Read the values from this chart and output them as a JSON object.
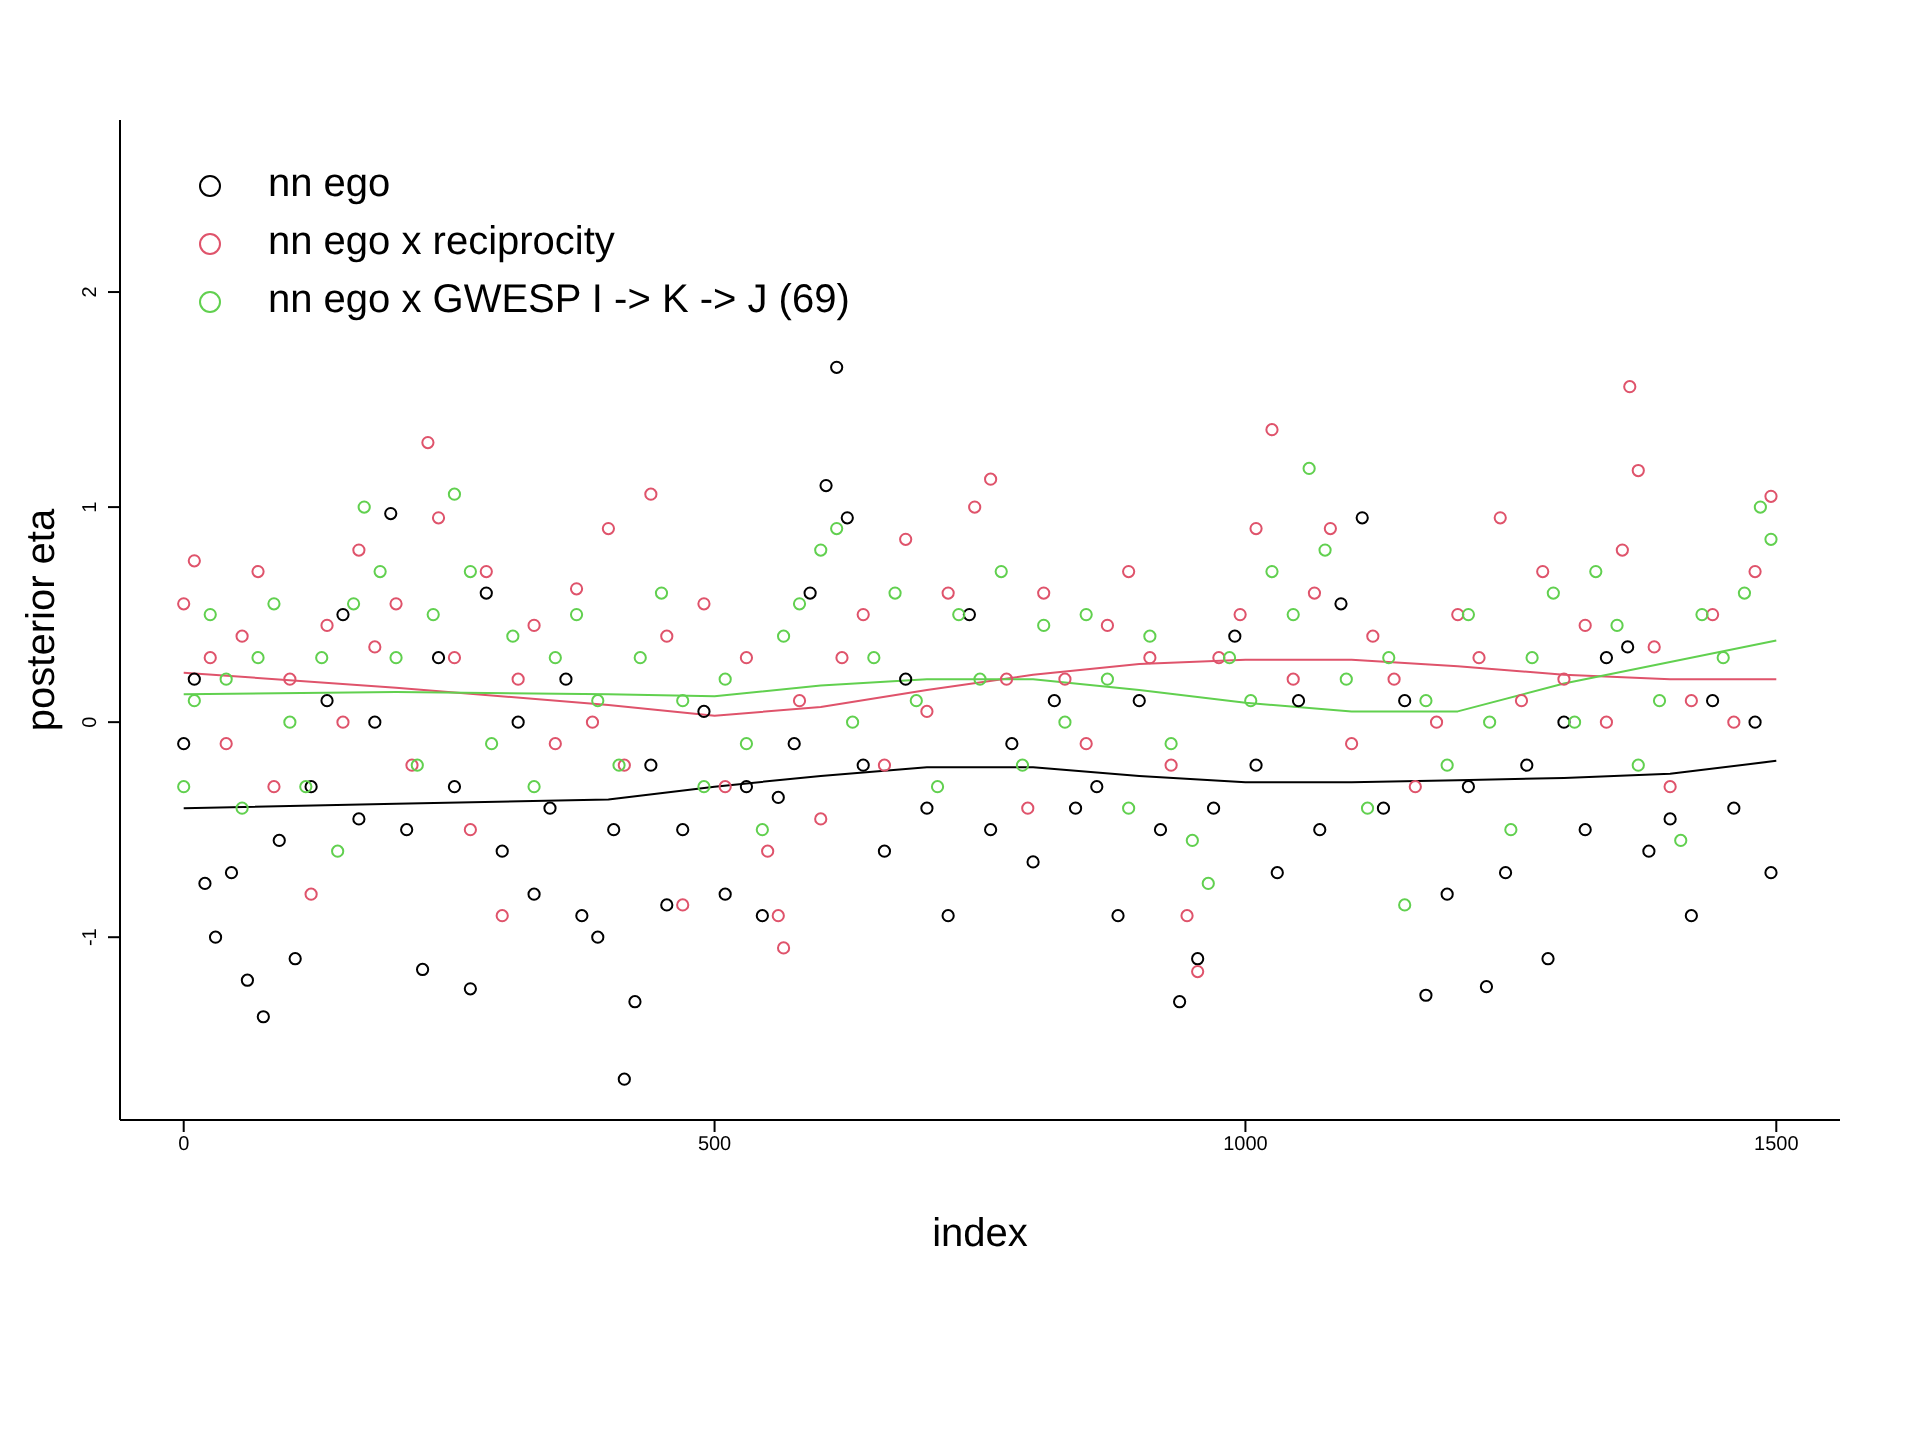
{
  "chart_data": {
    "type": "scatter",
    "xlabel": "index",
    "ylabel": "posterior eta",
    "xlim": [
      -60,
      1560
    ],
    "ylim": [
      -1.85,
      2.8
    ],
    "xticks": [
      0,
      500,
      1000,
      1500
    ],
    "yticks": [
      -1,
      0,
      1,
      2
    ],
    "grid": false,
    "legend": "top left",
    "marker": "circle",
    "series": [
      {
        "name": "nn ego",
        "color": "#000000",
        "x": [
          0,
          10,
          20,
          30,
          45,
          60,
          75,
          90,
          105,
          120,
          135,
          150,
          165,
          180,
          195,
          210,
          225,
          240,
          255,
          270,
          285,
          300,
          315,
          330,
          345,
          360,
          375,
          390,
          405,
          415,
          425,
          440,
          455,
          470,
          490,
          510,
          530,
          545,
          560,
          575,
          590,
          605,
          615,
          625,
          640,
          660,
          680,
          700,
          720,
          740,
          760,
          780,
          800,
          820,
          840,
          860,
          880,
          900,
          920,
          938,
          955,
          970,
          990,
          1010,
          1030,
          1050,
          1070,
          1090,
          1110,
          1130,
          1150,
          1170,
          1190,
          1210,
          1227,
          1245,
          1265,
          1285,
          1300,
          1320,
          1340,
          1360,
          1380,
          1400,
          1420,
          1440,
          1460,
          1480,
          1495
        ],
        "values": [
          -0.1,
          0.2,
          -0.75,
          -1.0,
          -0.7,
          -1.2,
          -1.37,
          -0.55,
          -1.1,
          -0.3,
          0.1,
          0.5,
          -0.45,
          0.0,
          0.97,
          -0.5,
          -1.15,
          0.3,
          -0.3,
          -1.24,
          0.6,
          -0.6,
          0.0,
          -0.8,
          -0.4,
          0.2,
          -0.9,
          -1.0,
          -0.5,
          -1.66,
          -1.3,
          -0.2,
          -0.85,
          -0.5,
          0.05,
          -0.8,
          -0.3,
          -0.9,
          -0.35,
          -0.1,
          0.6,
          1.1,
          1.65,
          0.95,
          -0.2,
          -0.6,
          0.2,
          -0.4,
          -0.9,
          0.5,
          -0.5,
          -0.1,
          -0.65,
          0.1,
          -0.4,
          -0.3,
          -0.9,
          0.1,
          -0.5,
          -1.3,
          -1.1,
          -0.4,
          0.4,
          -0.2,
          -0.7,
          0.1,
          -0.5,
          0.55,
          0.95,
          -0.4,
          0.1,
          -1.27,
          -0.8,
          -0.3,
          -1.23,
          -0.7,
          -0.2,
          -1.1,
          0.0,
          -0.5,
          0.3,
          0.35,
          -0.6,
          -0.45,
          -0.9,
          0.1,
          -0.4,
          0.0,
          -0.7
        ]
      },
      {
        "name": "nn ego x reciprocity",
        "color": "#df536b",
        "x": [
          0,
          10,
          25,
          40,
          55,
          70,
          85,
          100,
          120,
          135,
          150,
          165,
          180,
          200,
          215,
          230,
          240,
          255,
          270,
          285,
          300,
          315,
          330,
          350,
          370,
          385,
          400,
          415,
          440,
          455,
          470,
          490,
          510,
          530,
          550,
          560,
          565,
          580,
          600,
          620,
          640,
          660,
          680,
          700,
          720,
          745,
          760,
          775,
          795,
          810,
          830,
          850,
          870,
          890,
          910,
          930,
          945,
          955,
          975,
          995,
          1010,
          1025,
          1045,
          1065,
          1080,
          1100,
          1120,
          1140,
          1160,
          1180,
          1200,
          1220,
          1240,
          1260,
          1280,
          1300,
          1320,
          1340,
          1355,
          1362,
          1370,
          1385,
          1400,
          1420,
          1440,
          1460,
          1480,
          1495
        ],
        "values": [
          0.55,
          0.75,
          0.3,
          -0.1,
          0.4,
          0.7,
          -0.3,
          0.2,
          -0.8,
          0.45,
          0.0,
          0.8,
          0.35,
          0.55,
          -0.2,
          1.3,
          0.95,
          0.3,
          -0.5,
          0.7,
          -0.9,
          0.2,
          0.45,
          -0.1,
          0.62,
          0.0,
          0.9,
          -0.2,
          1.06,
          0.4,
          -0.85,
          0.55,
          -0.3,
          0.3,
          -0.6,
          -0.9,
          -1.05,
          0.1,
          -0.45,
          0.3,
          0.5,
          -0.2,
          0.85,
          0.05,
          0.6,
          1.0,
          1.13,
          0.2,
          -0.4,
          0.6,
          0.2,
          -0.1,
          0.45,
          0.7,
          0.3,
          -0.2,
          -0.9,
          -1.16,
          0.3,
          0.5,
          0.9,
          1.36,
          0.2,
          0.6,
          0.9,
          -0.1,
          0.4,
          0.2,
          -0.3,
          0.0,
          0.5,
          0.3,
          0.95,
          0.1,
          0.7,
          0.2,
          0.45,
          0.0,
          0.8,
          1.56,
          1.17,
          0.35,
          -0.3,
          0.1,
          0.5,
          0.0,
          0.7,
          1.05
        ]
      },
      {
        "name": "nn ego x GWESP I -> K -> J (69)",
        "color": "#61d04f",
        "x": [
          0,
          10,
          25,
          40,
          55,
          70,
          85,
          100,
          115,
          130,
          145,
          160,
          170,
          185,
          200,
          220,
          235,
          255,
          270,
          290,
          310,
          330,
          350,
          370,
          390,
          410,
          430,
          450,
          470,
          490,
          510,
          530,
          545,
          565,
          580,
          600,
          615,
          630,
          650,
          670,
          690,
          710,
          730,
          750,
          770,
          790,
          810,
          830,
          850,
          870,
          890,
          910,
          930,
          950,
          965,
          985,
          1005,
          1025,
          1045,
          1060,
          1075,
          1095,
          1115,
          1135,
          1150,
          1170,
          1190,
          1210,
          1230,
          1250,
          1270,
          1290,
          1310,
          1330,
          1350,
          1370,
          1390,
          1410,
          1430,
          1450,
          1470,
          1485,
          1495
        ],
        "values": [
          -0.3,
          0.1,
          0.5,
          0.2,
          -0.4,
          0.3,
          0.55,
          0.0,
          -0.3,
          0.3,
          -0.6,
          0.55,
          1.0,
          0.7,
          0.3,
          -0.2,
          0.5,
          1.06,
          0.7,
          -0.1,
          0.4,
          -0.3,
          0.3,
          0.5,
          0.1,
          -0.2,
          0.3,
          0.6,
          0.1,
          -0.3,
          0.2,
          -0.1,
          -0.5,
          0.4,
          0.55,
          0.8,
          0.9,
          0.0,
          0.3,
          0.6,
          0.1,
          -0.3,
          0.5,
          0.2,
          0.7,
          -0.2,
          0.45,
          0.0,
          0.5,
          0.2,
          -0.4,
          0.4,
          -0.1,
          -0.55,
          -0.75,
          0.3,
          0.1,
          0.7,
          0.5,
          1.18,
          0.8,
          0.2,
          -0.4,
          0.3,
          -0.85,
          0.1,
          -0.2,
          0.5,
          0.0,
          -0.5,
          0.3,
          0.6,
          0.0,
          0.7,
          0.45,
          -0.2,
          0.1,
          -0.55,
          0.5,
          0.3,
          0.6,
          1.0,
          0.85
        ]
      },
      {
        "type": "line",
        "marker": "none",
        "color": "#000000",
        "x": [
          0,
          200,
          400,
          500,
          600,
          700,
          800,
          900,
          1000,
          1100,
          1200,
          1300,
          1400,
          1500
        ],
        "values": [
          -0.4,
          -0.38,
          -0.36,
          -0.3,
          -0.25,
          -0.21,
          -0.21,
          -0.25,
          -0.28,
          -0.28,
          -0.27,
          -0.26,
          -0.24,
          -0.18
        ]
      },
      {
        "type": "line",
        "marker": "none",
        "color": "#df536b",
        "x": [
          0,
          200,
          400,
          500,
          600,
          700,
          800,
          900,
          1000,
          1100,
          1200,
          1300,
          1400,
          1500
        ],
        "values": [
          0.23,
          0.16,
          0.08,
          0.03,
          0.07,
          0.15,
          0.22,
          0.27,
          0.29,
          0.29,
          0.26,
          0.22,
          0.2,
          0.2
        ]
      },
      {
        "type": "line",
        "marker": "none",
        "color": "#61d04f",
        "x": [
          0,
          200,
          400,
          500,
          600,
          700,
          800,
          900,
          1000,
          1100,
          1200,
          1300,
          1400,
          1500
        ],
        "values": [
          0.13,
          0.14,
          0.13,
          0.12,
          0.17,
          0.2,
          0.2,
          0.15,
          0.09,
          0.05,
          0.05,
          0.18,
          0.28,
          0.38
        ]
      }
    ]
  }
}
